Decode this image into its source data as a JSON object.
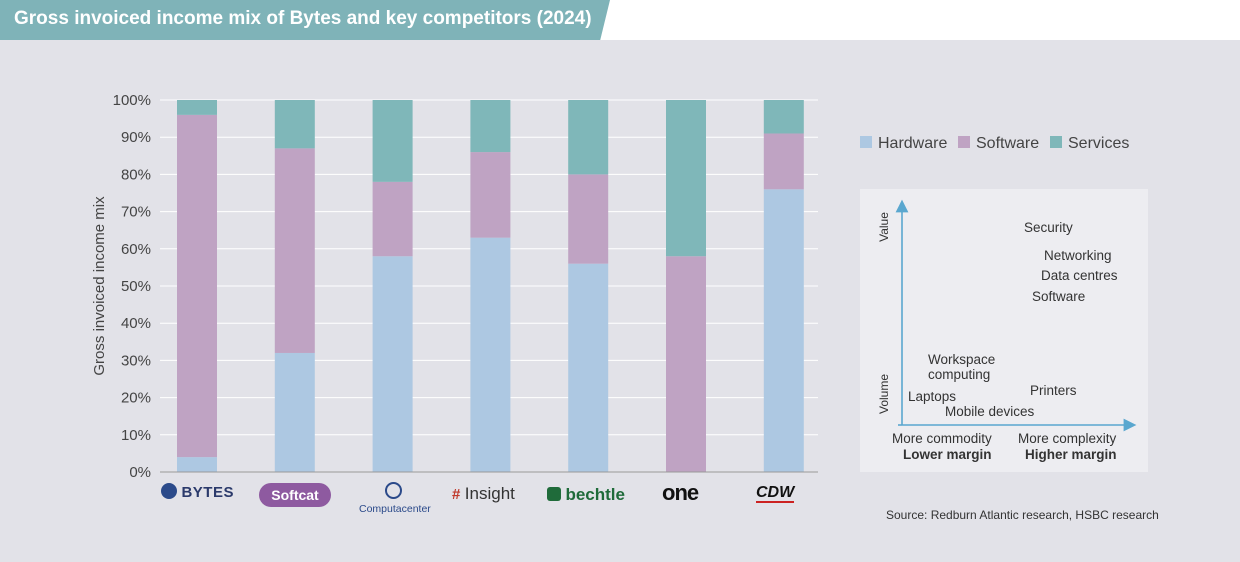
{
  "title": "Gross invoiced income mix of Bytes and key competitors (2024)",
  "chart_data": {
    "type": "bar",
    "stacked": true,
    "ylabel": "Gross invoiced income mix",
    "yticks": [
      "0%",
      "10%",
      "20%",
      "30%",
      "40%",
      "50%",
      "60%",
      "70%",
      "80%",
      "90%",
      "100%"
    ],
    "ylim": [
      0,
      100
    ],
    "categories": [
      "BYTES",
      "Softcat",
      "Computacenter",
      "Insight",
      "bechtle",
      "one",
      "CDW"
    ],
    "series": [
      {
        "name": "Hardware",
        "color": "#adc8e2",
        "values": [
          4,
          32,
          58,
          63,
          56,
          0,
          76
        ]
      },
      {
        "name": "Software",
        "color": "#bfa3c3",
        "values": [
          92,
          55,
          20,
          23,
          24,
          58,
          15
        ]
      },
      {
        "name": "Services",
        "color": "#7fb7b9",
        "values": [
          4,
          13,
          22,
          14,
          20,
          42,
          9
        ]
      }
    ],
    "legend_position": "right"
  },
  "logos": {
    "bytes": "BYTES",
    "softcat": "Softcat",
    "computacenter": "Computacenter",
    "insight": "Insight",
    "bechtle": "bechtle",
    "one": "one",
    "cdw": "CDW"
  },
  "map": {
    "y_axis_top": "Value",
    "y_axis_bottom": "Volume",
    "labels": {
      "security": "Security",
      "networking": "Networking",
      "data_centres": "Data centres",
      "software": "Software",
      "workspace_1": "Workspace",
      "workspace_2": "computing",
      "printers": "Printers",
      "laptops": "Laptops",
      "mobile_devices": "Mobile devices"
    },
    "x_left": "More commodity",
    "x_left_sub": "Lower margin",
    "x_right": "More complexity",
    "x_right_sub": "Higher margin"
  },
  "source": "Source: Redburn Atlantic research, HSBC research"
}
